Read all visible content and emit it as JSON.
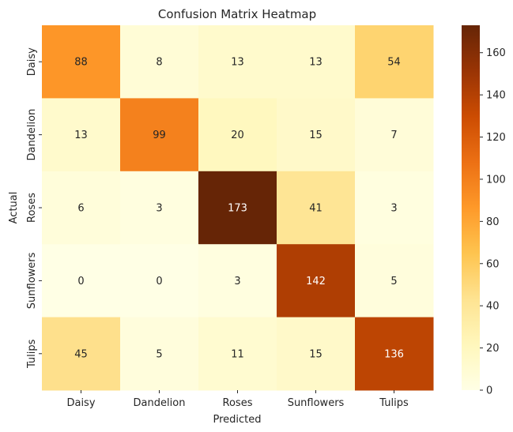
{
  "chart_data": {
    "type": "heatmap",
    "title": "Confusion Matrix Heatmap",
    "xlabel": "Predicted",
    "ylabel": "Actual",
    "x_categories": [
      "Daisy",
      "Dandelion",
      "Roses",
      "Sunflowers",
      "Tulips"
    ],
    "y_categories": [
      "Daisy",
      "Dandelion",
      "Roses",
      "Sunflowers",
      "Tulips"
    ],
    "values": [
      [
        88,
        8,
        13,
        13,
        54
      ],
      [
        13,
        99,
        20,
        15,
        7
      ],
      [
        6,
        3,
        173,
        41,
        3
      ],
      [
        0,
        0,
        3,
        142,
        5
      ],
      [
        45,
        5,
        11,
        15,
        136
      ]
    ],
    "colormap": "YlOrBr",
    "value_range": [
      0,
      173
    ],
    "colorbar_ticks": [
      0,
      20,
      40,
      60,
      80,
      100,
      120,
      140,
      160
    ],
    "annotations": true,
    "grid": false
  }
}
